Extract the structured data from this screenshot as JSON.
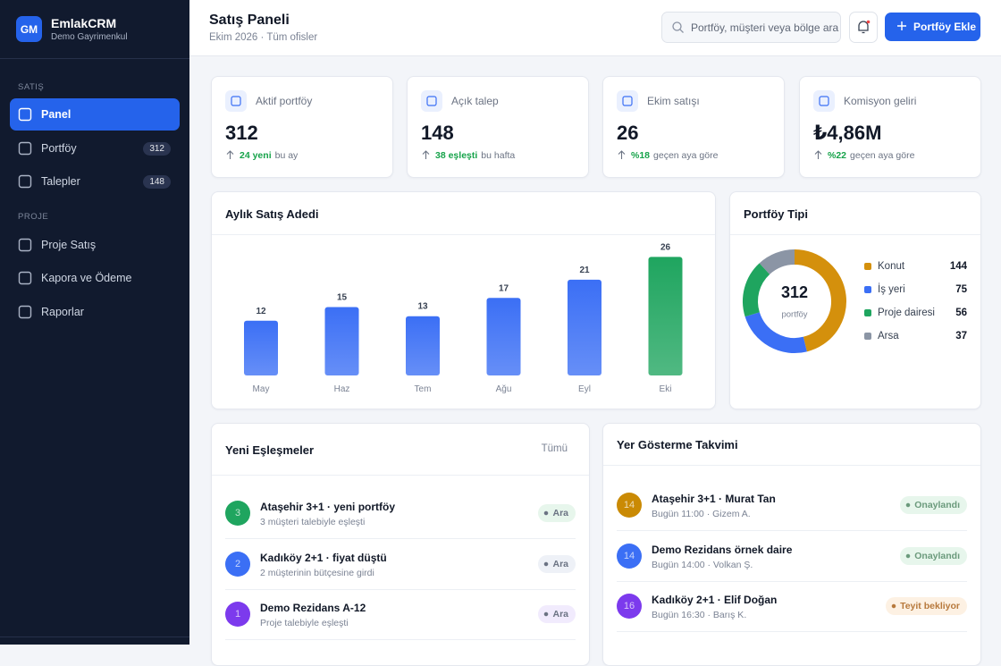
{
  "sidebar": {
    "logo": "GM",
    "brand": "EmlakCRM",
    "subtitle": "Demo Gayrimenkul",
    "sections": [
      {
        "title": "SATIŞ",
        "items": [
          {
            "label": "Panel"
          },
          {
            "label": "Portföy",
            "badge": 312
          },
          {
            "label": "Talepler",
            "badge": 148
          }
        ]
      },
      {
        "title": "PROJE",
        "items": [
          {
            "label": "Proje Satış"
          },
          {
            "label": "Kapora ve Ödeme"
          },
          {
            "label": "Raporlar"
          }
        ]
      }
    ]
  },
  "header": {
    "title": "Satış Paneli",
    "subtitle": "Ekim 2026 · Tüm ofisler",
    "search_placeholder": "Portföy, müşteri veya bölge ara",
    "button": "Portföy Ekle"
  },
  "stats": [
    {
      "label": "Aktif portföy",
      "value": "312",
      "delta": "24 yeni",
      "note": "bu ay"
    },
    {
      "label": "Açık talep",
      "value": "148",
      "delta": "38 eşleşti",
      "note": "bu hafta"
    },
    {
      "label": "Ekim satışı",
      "value": "26",
      "delta": "%18",
      "note": "geçen aya göre"
    },
    {
      "label": "Komisyon geliri",
      "value": "₺4,86M",
      "delta": "%22",
      "note": "geçen aya göre"
    }
  ],
  "bar_chart": {
    "type": "bar",
    "title": "Aylık Satış Adedi",
    "categories": [
      "May",
      "Haz",
      "Tem",
      "Ağu",
      "Eyl",
      "Eki"
    ],
    "values": [
      12,
      15,
      13,
      17,
      21,
      26
    ],
    "colors": [
      "#3b6ff5",
      "#3b6ff5",
      "#3b6ff5",
      "#3b6ff5",
      "#3b6ff5",
      "#1fa55f"
    ]
  },
  "donut": {
    "type": "donut",
    "title": "Portföy Tipi",
    "total": 312,
    "total_label": "portföy",
    "items": [
      {
        "name": "Konut",
        "value": 144,
        "color": "#d4900c"
      },
      {
        "name": "İş yeri",
        "value": 75,
        "color": "#3b6ff5"
      },
      {
        "name": "Proje dairesi",
        "value": 56,
        "color": "#1fa55f"
      },
      {
        "name": "Arsa",
        "value": 37,
        "color": "#8b95a5"
      }
    ]
  },
  "matches": {
    "title": "Yeni Eşleşmeler",
    "link": "Tümü",
    "items": [
      {
        "badge": "3",
        "title": "Ataşehir 3+1 · yeni portföy",
        "subtitle": "3 müşteri talebiyle eşleşti",
        "action": "Ara"
      },
      {
        "badge": "2",
        "title": "Kadıköy 2+1 · fiyat düştü",
        "subtitle": "2 müşterinin bütçesine girdi",
        "action": "Ara"
      },
      {
        "badge": "1",
        "title": "Demo Rezidans A-12",
        "subtitle": "Proje talebiyle eşleşti",
        "action": "Ara"
      }
    ]
  },
  "schedule": {
    "title": "Yer Gösterme Takvimi",
    "items": [
      {
        "badge": "14",
        "title": "Ataşehir 3+1 · Murat Tan",
        "subtitle": "Bugün 11:00 · Gizem A.",
        "status": "Onaylandı"
      },
      {
        "badge": "14",
        "title": "Demo Rezidans örnek daire",
        "subtitle": "Bugün 14:00 · Volkan Ş.",
        "status": "Onaylandı"
      },
      {
        "badge": "16",
        "title": "Kadıköy 2+1 · Elif Doğan",
        "subtitle": "Bugün 16:30 · Barış K.",
        "status": "Teyit bekliyor"
      }
    ]
  }
}
